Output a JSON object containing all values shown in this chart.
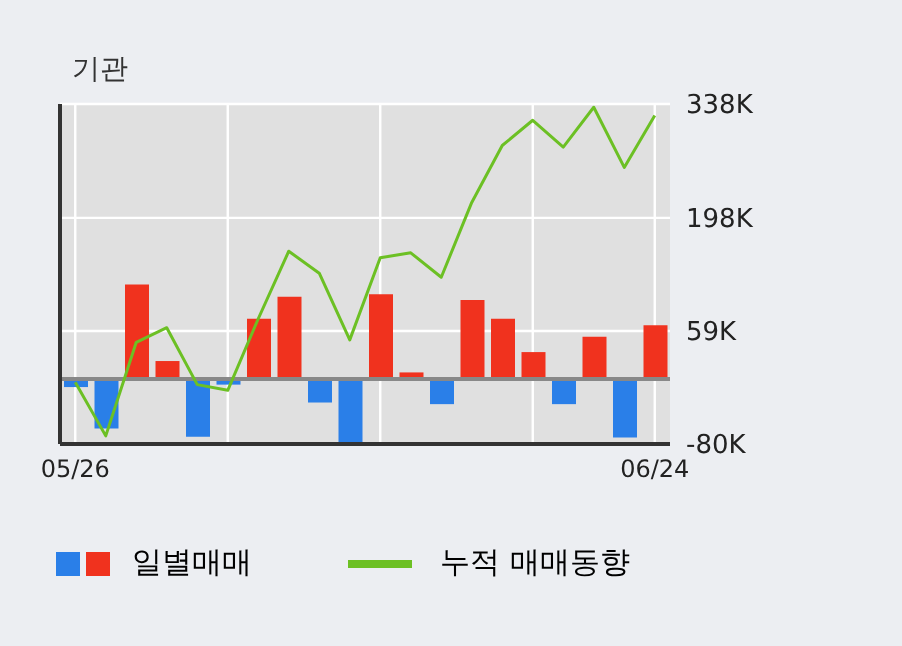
{
  "chart_data": {
    "type": "bar",
    "title": "기관",
    "categories": [
      "05/26",
      null,
      null,
      null,
      null,
      null,
      null,
      null,
      null,
      null,
      null,
      null,
      null,
      null,
      null,
      null,
      null,
      null,
      null,
      "06/24"
    ],
    "series": [
      {
        "name": "일별매매",
        "colors": [
          "#2a7fe8",
          "#2a7fe8",
          "#f0321e",
          "#f0321e",
          "#2a7fe8",
          "#2a7fe8",
          "#f0321e",
          "#f0321e",
          "#2a7fe8",
          "#2a7fe8",
          "#f0321e",
          "#f0321e",
          "#2a7fe8",
          "#f0321e",
          "#f0321e",
          "#f0321e",
          "#2a7fe8",
          "#f0321e",
          "#2a7fe8",
          "#f0321e"
        ],
        "values": [
          -10,
          -61,
          116,
          22,
          -71,
          -7,
          74,
          101,
          -29,
          -78,
          104,
          8,
          -31,
          97,
          74,
          33,
          -31,
          52,
          -72,
          66
        ]
      },
      {
        "name": "누적 매매동향",
        "type": "line",
        "color": "#6cc024",
        "values": [
          -4,
          -70,
          45,
          63,
          -7,
          -14,
          74,
          157,
          130,
          48,
          149,
          155,
          125,
          217,
          287,
          318,
          285,
          334,
          260,
          324
        ]
      }
    ],
    "ylim": [
      -80,
      338
    ],
    "yticks": [
      {
        "value": -80,
        "label": "-80K"
      },
      {
        "value": 59,
        "label": "59K"
      },
      {
        "value": 198,
        "label": "198K"
      },
      {
        "value": 338,
        "label": "338K"
      }
    ],
    "ref_lines": [
      {
        "axis": "y",
        "value": 0,
        "color": "#888888"
      }
    ],
    "grid": true,
    "legend": "bottom",
    "marker": "none"
  }
}
